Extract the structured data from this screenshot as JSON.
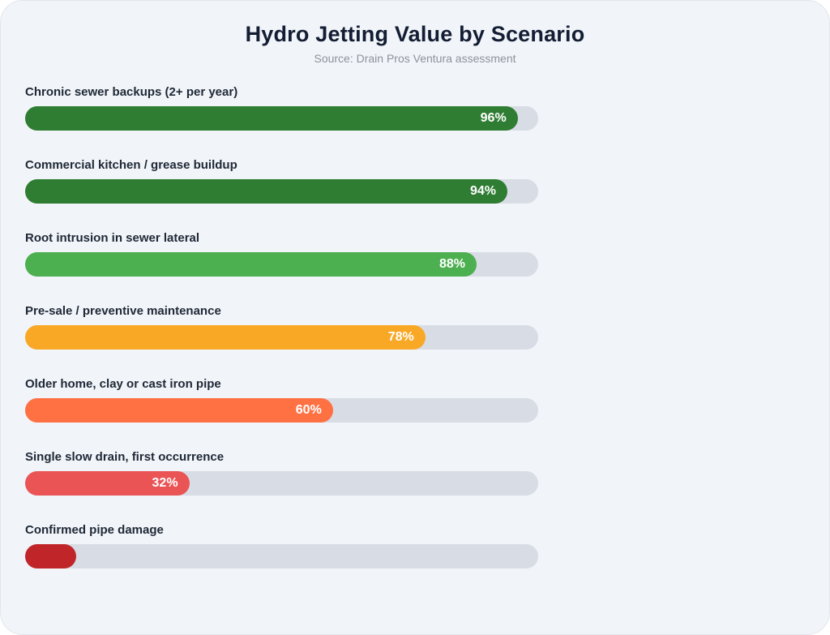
{
  "page": {
    "title": "Hydro Jetting Value by Scenario",
    "subtitle": "Source: Drain Pros Ventura assessment"
  },
  "colors": {
    "canvas_background": "#ffffff",
    "card_background": "#f1f4f8",
    "card_border": "#e3e6ec",
    "title_text": "#131d33",
    "subtitle_text": "#8d929c",
    "label_text": "#1e2836",
    "value_text": "#ffffff",
    "bar_track": "#d8dde5"
  },
  "chart_data": {
    "type": "bar",
    "orientation": "horizontal",
    "title": "Hydro Jetting Value by Scenario",
    "subtitle": "Source: Drain Pros Ventura assessment",
    "categories": [
      "Chronic sewer backups (2+ per year)",
      "Commercial kitchen / grease buildup",
      "Root intrusion in sewer lateral",
      "Pre-sale / preventive maintenance",
      "Older home, clay or cast iron pipe",
      "Single slow drain, first occurrence",
      "Confirmed pipe damage"
    ],
    "values": [
      96,
      94,
      88,
      78,
      60,
      32,
      10
    ],
    "value_labels": [
      "96%",
      "94%",
      "88%",
      "78%",
      "60%",
      "32%",
      ""
    ],
    "bar_colors": [
      "#2e7d32",
      "#2e7d32",
      "#4caf50",
      "#f9a826",
      "#ff7043",
      "#ea5455",
      "#c02629"
    ],
    "xlim": [
      0,
      100
    ],
    "grid": false,
    "legend": false
  }
}
